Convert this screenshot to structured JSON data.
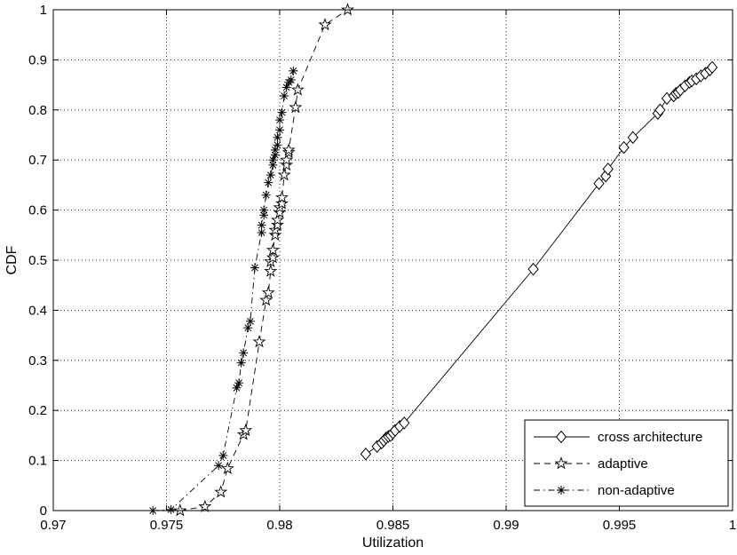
{
  "chart_data": {
    "type": "line",
    "title": "",
    "xlabel": "Utilization",
    "ylabel": "CDF",
    "xlim": [
      0.97,
      1.0
    ],
    "ylim": [
      0,
      1
    ],
    "xticks": [
      0.97,
      0.975,
      0.98,
      0.985,
      0.99,
      0.995,
      1.0
    ],
    "xtick_labels": [
      "0.97",
      "0.975",
      "0.98",
      "0.985",
      "0.99",
      "0.995",
      "1"
    ],
    "yticks": [
      0,
      0.1,
      0.2,
      0.3,
      0.4,
      0.5,
      0.6,
      0.7,
      0.8,
      0.9,
      1.0
    ],
    "ytick_labels": [
      "0",
      "0.1",
      "0.2",
      "0.3",
      "0.4",
      "0.5",
      "0.6",
      "0.7",
      "0.8",
      "0.9",
      "1"
    ],
    "grid": true,
    "legend_position": "bottom-right",
    "series": [
      {
        "name": "cross architecture",
        "line_style": "solid",
        "marker": "diamond",
        "x": [
          0.9838,
          0.9843,
          0.9845,
          0.9846,
          0.9847,
          0.9848,
          0.9849,
          0.985,
          0.9851,
          0.9853,
          0.9855,
          0.9912,
          0.9941,
          0.9944,
          0.9945,
          0.9952,
          0.9956,
          0.9967,
          0.9968,
          0.9971,
          0.9974,
          0.9975,
          0.9976,
          0.9977,
          0.9979,
          0.9981,
          0.9982,
          0.9984,
          0.9986,
          0.9988,
          0.999,
          0.9991
        ],
        "y": [
          0.113,
          0.128,
          0.135,
          0.14,
          0.145,
          0.148,
          0.15,
          0.155,
          0.16,
          0.168,
          0.175,
          0.482,
          0.653,
          0.668,
          0.682,
          0.725,
          0.745,
          0.793,
          0.8,
          0.823,
          0.828,
          0.833,
          0.835,
          0.84,
          0.848,
          0.855,
          0.858,
          0.862,
          0.868,
          0.873,
          0.88,
          0.885
        ]
      },
      {
        "name": "adaptive",
        "line_style": "dashed",
        "marker": "star",
        "x": [
          0.9756,
          0.9767,
          0.9774,
          0.9777,
          0.9784,
          0.9785,
          0.9791,
          0.9794,
          0.9795,
          0.9796,
          0.9796,
          0.9797,
          0.9797,
          0.9798,
          0.9798,
          0.9799,
          0.9799,
          0.98,
          0.98,
          0.9801,
          0.9801,
          0.9802,
          0.9803,
          0.9803,
          0.9804,
          0.9804,
          0.9807,
          0.9808,
          0.982,
          0.983
        ],
        "y": [
          0.0,
          0.008,
          0.037,
          0.084,
          0.152,
          0.16,
          0.337,
          0.42,
          0.435,
          0.478,
          0.497,
          0.505,
          0.52,
          0.55,
          0.56,
          0.57,
          0.58,
          0.595,
          0.605,
          0.613,
          0.625,
          0.67,
          0.69,
          0.7,
          0.715,
          0.72,
          0.805,
          0.84,
          0.97,
          1.0
        ]
      },
      {
        "name": "non-adaptive",
        "line_style": "dashdot",
        "marker": "asterisk",
        "x": [
          0.9744,
          0.9752,
          0.9773,
          0.9775,
          0.9781,
          0.9782,
          0.9783,
          0.9784,
          0.9786,
          0.9787,
          0.9789,
          0.9792,
          0.9792,
          0.9793,
          0.9793,
          0.9794,
          0.9795,
          0.9796,
          0.9797,
          0.9797,
          0.9798,
          0.9798,
          0.9799,
          0.9799,
          0.98,
          0.98,
          0.9801,
          0.9802,
          0.9803,
          0.9804,
          0.9805,
          0.9806
        ],
        "y": [
          0.0,
          0.002,
          0.09,
          0.11,
          0.245,
          0.255,
          0.295,
          0.315,
          0.365,
          0.378,
          0.485,
          0.555,
          0.57,
          0.59,
          0.6,
          0.63,
          0.655,
          0.67,
          0.69,
          0.7,
          0.71,
          0.72,
          0.73,
          0.745,
          0.76,
          0.78,
          0.795,
          0.828,
          0.845,
          0.855,
          0.86,
          0.878
        ]
      }
    ]
  }
}
